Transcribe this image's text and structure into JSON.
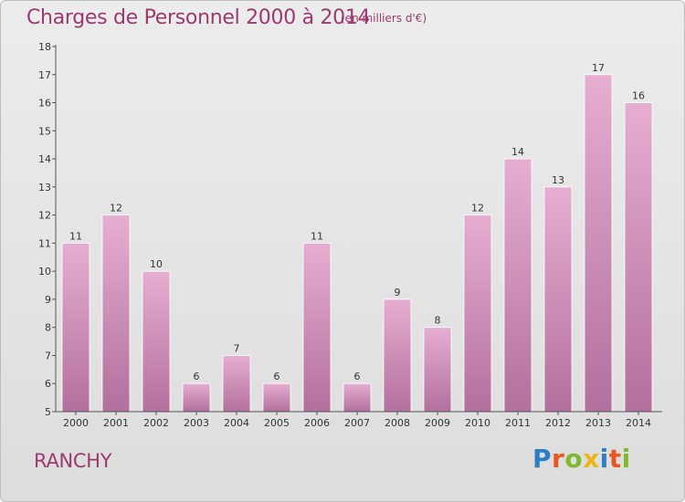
{
  "header": {
    "title": "Charges de Personnel 2000 à 2014",
    "subtitle": "(en milliers d'€)"
  },
  "footer": {
    "city": "RANCHY",
    "logo_letters": [
      "P",
      "r",
      "o",
      "x",
      "i",
      "t",
      "i"
    ],
    "logo_colors": [
      "#2c7fc2",
      "#e8571f",
      "#7dbb2c",
      "#f2b318",
      "#2c7fc2",
      "#e8571f",
      "#7dbb2c"
    ]
  },
  "colors": {
    "bar_top": "#e6aed1",
    "bar_bottom": "#b2709c",
    "axis": "#555555",
    "text": "#333333",
    "accent": "#9a3a6e"
  },
  "chart_data": {
    "type": "bar",
    "categories": [
      "2000",
      "2001",
      "2002",
      "2003",
      "2004",
      "2005",
      "2006",
      "2007",
      "2008",
      "2009",
      "2010",
      "2011",
      "2012",
      "2013",
      "2014"
    ],
    "values": [
      11,
      12,
      10,
      6,
      7,
      6,
      11,
      6,
      9,
      8,
      12,
      14,
      13,
      17,
      16
    ],
    "data_labels": [
      "11",
      "12",
      "10",
      "6",
      "7",
      "6",
      "11",
      "6",
      "9",
      "8",
      "12",
      "14",
      "13",
      "17",
      "16"
    ],
    "yticks": [
      "5",
      "6",
      "7",
      "8",
      "9",
      "10",
      "11",
      "12",
      "13",
      "14",
      "15",
      "16",
      "17",
      "18"
    ],
    "ylim": [
      5,
      18
    ],
    "title": "Charges de Personnel 2000 à 2014",
    "xlabel": "",
    "ylabel": "",
    "grid": false
  }
}
